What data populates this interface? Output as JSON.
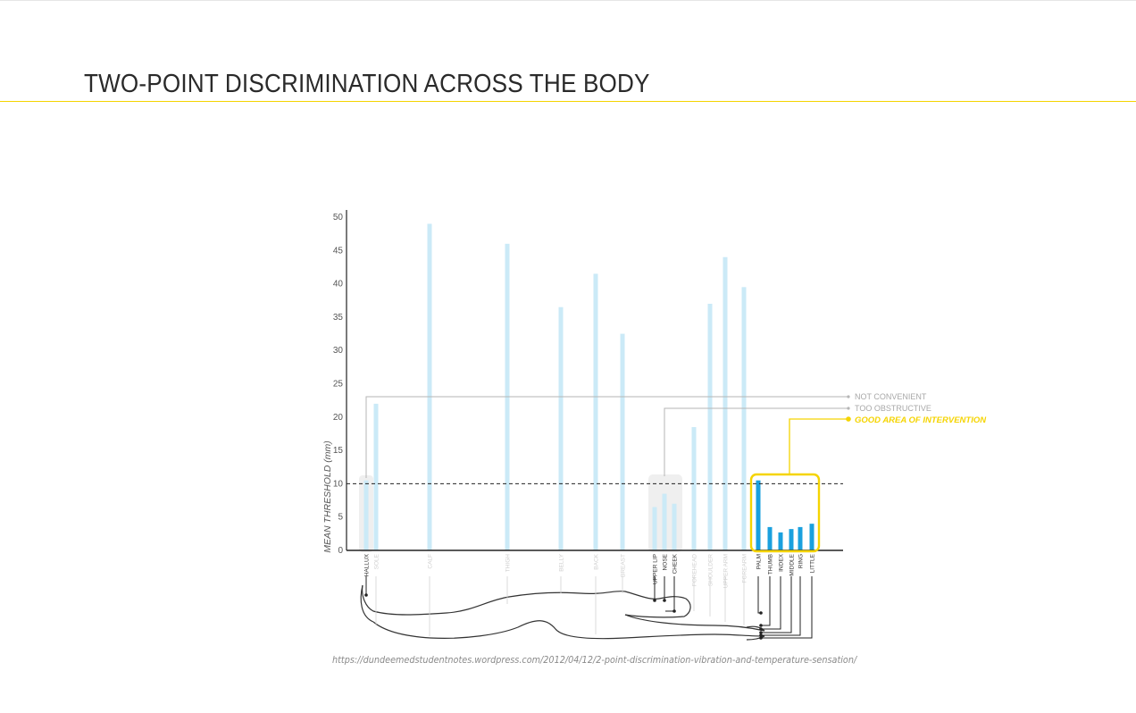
{
  "page": {
    "title": "TWO-POINT DISCRIMINATION ACROSS THE BODY",
    "source": "https://dundeemedstudentnotes.wordpress.com/2012/04/12/2-point-discrimination-vibration-and-temperature-sensation/"
  },
  "colors": {
    "faded_bar": "#cbeaf7",
    "highlight_bar": "#1aa0de",
    "accent": "#f5d400",
    "axis": "#222222",
    "leader_gray": "#b5b5b5",
    "region_fill": "#efefef"
  },
  "chart_data": {
    "type": "bar",
    "ylabel": "MEAN THRESHOLD (mm)",
    "ylim": [
      0,
      50
    ],
    "yticks": [
      0,
      5,
      10,
      15,
      20,
      25,
      30,
      35,
      40,
      45,
      50
    ],
    "reference_line": 10,
    "categories": [
      "HALLUX",
      "SOLE",
      "CALF",
      "THIGH",
      "BELLY",
      "BACK",
      "BREAST",
      "UPPER LIP",
      "NOSE",
      "CHEEK",
      "FOREHEAD",
      "SHOULDER",
      "UPPER ARM",
      "FOREARM",
      "PALM",
      "THUMB",
      "INDEX",
      "MIDDLE",
      "RING",
      "LITTLE"
    ],
    "values": [
      10.5,
      22,
      49,
      46,
      36.5,
      41.5,
      32.5,
      6.5,
      8.5,
      7,
      18.5,
      37,
      44,
      39.5,
      10.5,
      3.5,
      2.7,
      3.2,
      3.5,
      4
    ],
    "highlighted": [
      "PALM",
      "THUMB",
      "INDEX",
      "MIDDLE",
      "RING",
      "LITTLE"
    ],
    "dark_labels": [
      "HALLUX",
      "UPPER LIP",
      "NOSE",
      "CHEEK",
      "PALM",
      "THUMB",
      "INDEX",
      "MIDDLE",
      "RING",
      "LITTLE"
    ],
    "annotations": [
      {
        "text": "NOT CONVENIENT",
        "style": "gray"
      },
      {
        "text": "TOO OBSTRUCTIVE",
        "style": "gray"
      },
      {
        "text": "GOOD AREA OF INTERVENTION",
        "style": "accent"
      }
    ],
    "grid": false
  }
}
